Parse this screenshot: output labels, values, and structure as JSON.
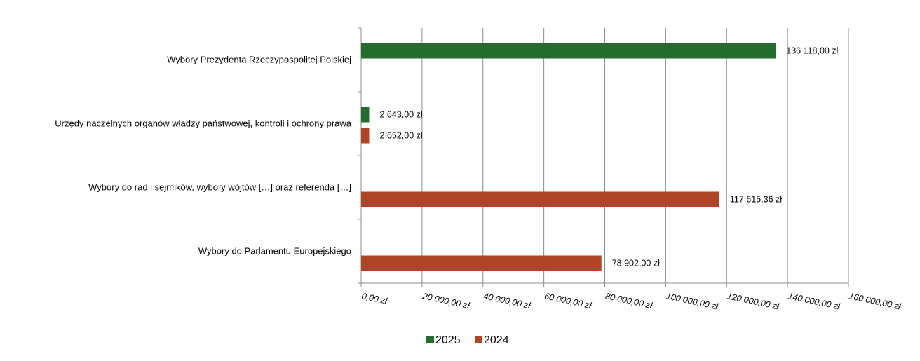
{
  "chart_data": {
    "type": "bar",
    "orientation": "horizontal",
    "categories": [
      "Wybory Prezydenta Rzeczypospolitej Polskiej",
      "Urzędy naczelnych organów władzy państwowej, kontroli i ochrony prawa",
      "Wybory do rad i sejmików, wybory wójtów […] oraz referenda […]",
      "Wybory do Parlamentu Europejskiego"
    ],
    "series": [
      {
        "name": "2025",
        "color": "#236b2e",
        "values": [
          136118.0,
          2643.0,
          null,
          null
        ],
        "labels": [
          "136 118,00 zł",
          "2 643,00 zł",
          "",
          ""
        ]
      },
      {
        "name": "2024",
        "color": "#b04427",
        "values": [
          null,
          2652.0,
          117615.36,
          78902.0
        ],
        "labels": [
          "",
          "2 652,00 zł",
          "117 615,36 zł",
          "78 902,00 zł"
        ]
      }
    ],
    "xlim": [
      0,
      160000
    ],
    "x_ticks": [
      0,
      20000,
      40000,
      60000,
      80000,
      100000,
      120000,
      140000,
      160000
    ],
    "x_tick_labels": [
      "0,00 zł",
      "20 000,00 zł",
      "40 000,00 zł",
      "60 000,00 zł",
      "80 000,00 zł",
      "100 000,00 zł",
      "120 000,00 zł",
      "140 000,00 zł",
      "160 000,00 zł"
    ],
    "grid": "vertical",
    "legend": "bottom-center"
  }
}
